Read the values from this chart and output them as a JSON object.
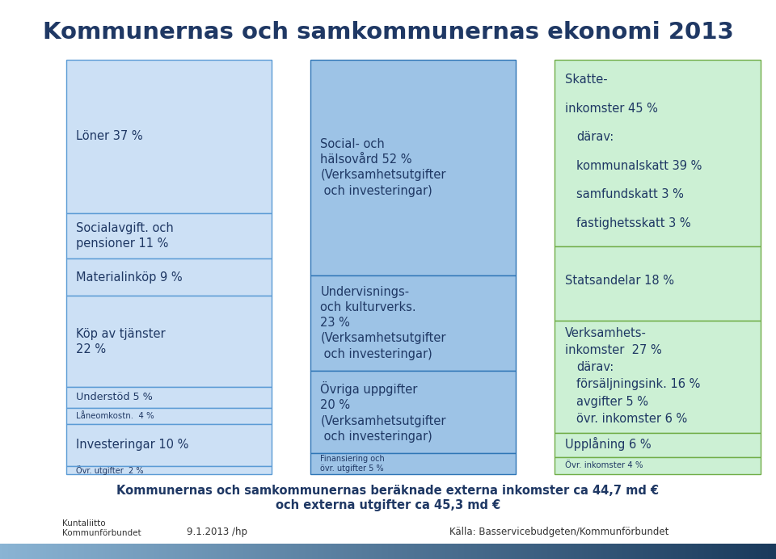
{
  "title": "Kommunernas och samkommunernas ekonomi 2013",
  "title_fontsize": 21,
  "background_color": "#ffffff",
  "footer_text1": "Kommunernas och samkommunernas beräknade externa inkomster ca 44,7 md €",
  "footer_text2": "och externa utgifter ca 45,3 md €",
  "footer_left": "9.1.2013 /hp",
  "footer_right": "Källa: Basservicebudgeten/Kommunförbundet",
  "col1_color": "#cce0f5",
  "col2_color": "#9dc3e6",
  "col3_color": "#ccf0d4",
  "col1_border": "#5b9bd5",
  "col2_border": "#2e75b6",
  "col3_border": "#70ad47",
  "text_color": "#1f3864",
  "col1_segments": [
    {
      "label": "Löner 37 %",
      "value": 37
    },
    {
      "label": "Socialavgift. och\npensioner 11 %",
      "value": 11
    },
    {
      "label": "Materialinköp 9 %",
      "value": 9
    },
    {
      "label": "Köp av tjänster\n22 %",
      "value": 22
    },
    {
      "label": "Understöd 5 %",
      "value": 5
    },
    {
      "label": "Låneomkostn.  4 %",
      "value": 4
    },
    {
      "label": "Investeringar 10 %",
      "value": 10
    },
    {
      "label": "Övr. utgifter  2 %",
      "value": 2
    }
  ],
  "col2_segments": [
    {
      "label": "Social- och\nhälsovård 52 %\n(Verksamhetsutgifter\n och investeringar)",
      "value": 52
    },
    {
      "label": "Undervisnings-\noch kulturverks.\n23 %\n(Verksamhetsutgifter\n och investeringar)",
      "value": 23
    },
    {
      "label": "Övriga uppgifter\n20 %\n(Verksamhetsutgifter\n och investeringar)",
      "value": 20
    },
    {
      "label": "Finansiering och\növr. utgifter 5 %",
      "value": 5
    }
  ],
  "col3_segments": [
    {
      "label": "Skatte-\ninkomster 45 %\ndärav:\nkommunalskatt 39 %\nsamfundskatt 3 %\nfastighetsskatt 3 %",
      "value": 45,
      "indent": [
        2,
        3,
        4,
        5
      ]
    },
    {
      "label": "Statsandelar 18 %",
      "value": 18,
      "indent": []
    },
    {
      "label": "Verksamhets-\ninkomster  27 %\ndärav:\nförsäljningsink. 16 %\navgifter 5 %\növr. inkomster 6 %",
      "value": 27,
      "indent": [
        2,
        3,
        4,
        5
      ]
    },
    {
      "label": "Upplåning 6 %",
      "value": 6,
      "indent": []
    },
    {
      "label": "Övr. inkomster 4 %",
      "value": 4,
      "indent": []
    }
  ]
}
